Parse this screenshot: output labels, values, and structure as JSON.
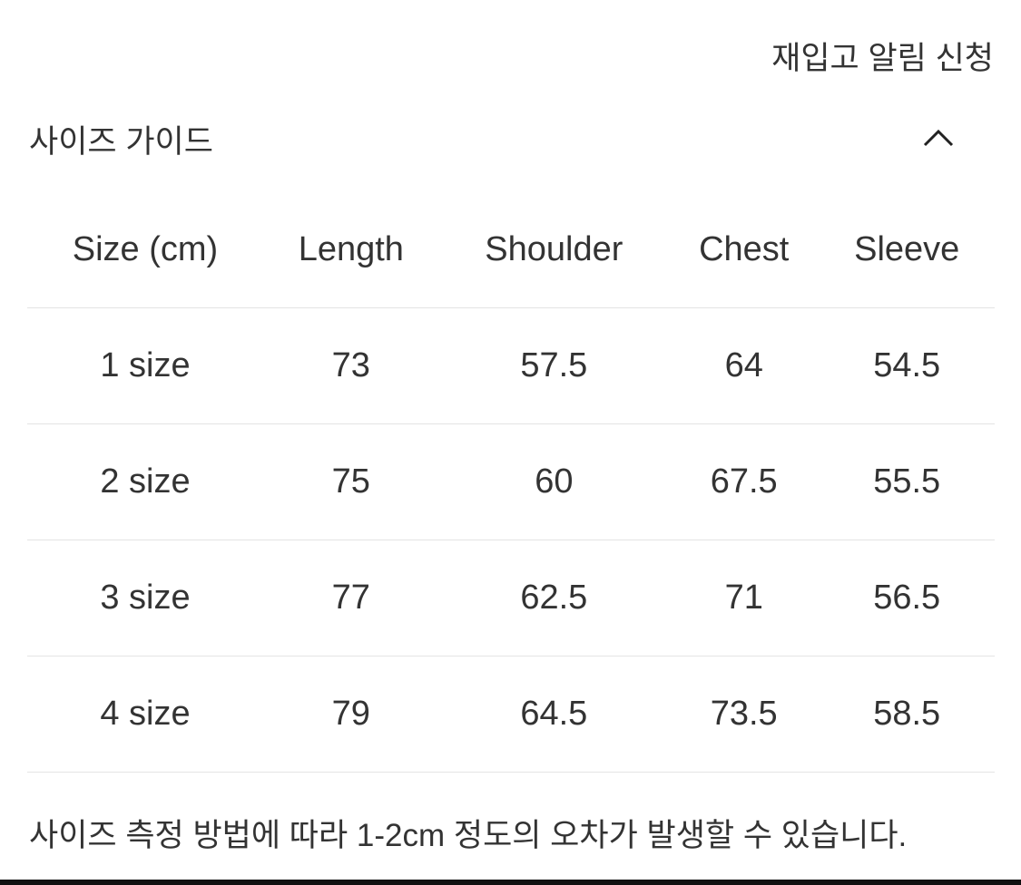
{
  "restock_label": "재입고 알림 신청",
  "size_guide": {
    "title": "사이즈 가이드",
    "toggle_icon": "chevron-up-icon",
    "headers": [
      "Size (cm)",
      "Length",
      "Shoulder",
      "Chest",
      "Sleeve"
    ],
    "rows": [
      [
        "1 size",
        "73",
        "57.5",
        "64",
        "54.5"
      ],
      [
        "2 size",
        "75",
        "60",
        "67.5",
        "55.5"
      ],
      [
        "3 size",
        "77",
        "62.5",
        "71",
        "56.5"
      ],
      [
        "4 size",
        "79",
        "64.5",
        "73.5",
        "58.5"
      ]
    ],
    "note": "사이즈 측정 방법에 따라 1-2cm 정도의 오차가 발생할 수 있습니다."
  }
}
